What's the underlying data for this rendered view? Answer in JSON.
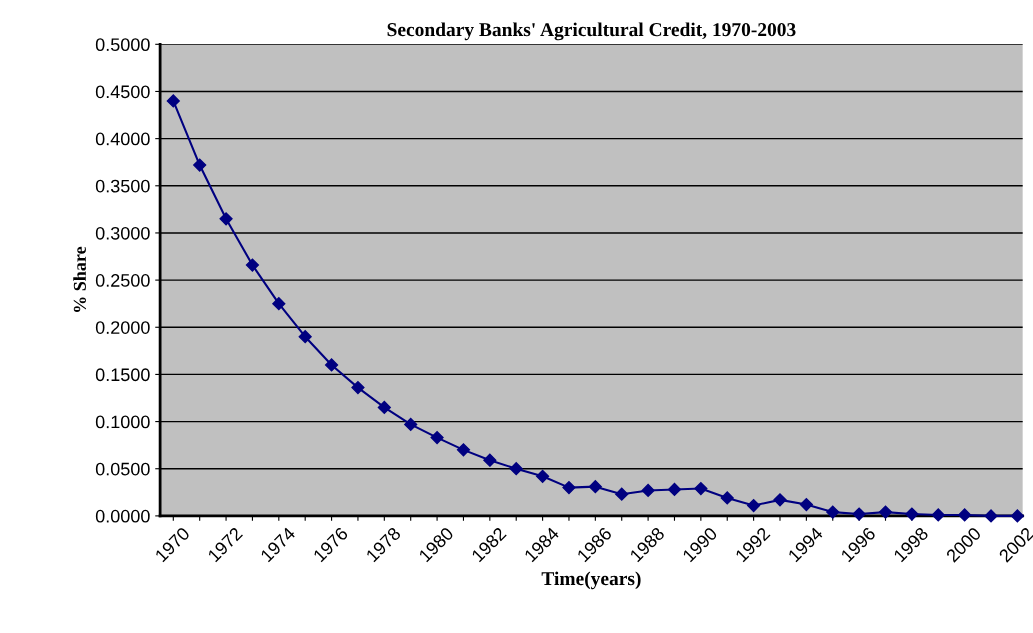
{
  "chart_data": {
    "type": "line",
    "title": "Secondary Banks' Agricultural Credit, 1970-2003",
    "xlabel": "Time(years)",
    "ylabel": "% Share",
    "categories": [
      "1970",
      null,
      "1972",
      null,
      "1974",
      null,
      "1976",
      null,
      "1978",
      null,
      "1980",
      null,
      "1982",
      null,
      "1984",
      null,
      "1986",
      null,
      "1988",
      null,
      "1990",
      null,
      "1992",
      null,
      "1994",
      null,
      "1996",
      null,
      "1998",
      null,
      "2000",
      null,
      "2002"
    ],
    "series": [
      {
        "color": "#000080",
        "values": [
          0.44,
          0.372,
          0.315,
          0.266,
          0.225,
          0.19,
          0.16,
          0.136,
          0.115,
          0.097,
          0.083,
          0.07,
          0.059,
          0.05,
          0.042,
          0.03,
          0.031,
          0.023,
          0.027,
          0.028,
          0.029,
          0.019,
          0.011,
          0.017,
          0.012,
          0.004,
          0.002,
          0.004,
          0.002,
          0.001,
          0.001,
          0.0,
          0.0
        ]
      }
    ],
    "ylim": [
      0,
      0.5
    ],
    "yticks": [
      {
        "value": 0,
        "label": "0.0000"
      },
      {
        "value": 0.05,
        "label": "0.0500"
      },
      {
        "value": 0.1,
        "label": "0.1000"
      },
      {
        "value": 0.15,
        "label": "0.1500"
      },
      {
        "value": 0.2,
        "label": "0.2000"
      },
      {
        "value": 0.25,
        "label": "0.2500"
      },
      {
        "value": 0.3,
        "label": "0.3000"
      },
      {
        "value": 0.35,
        "label": "0.3500"
      },
      {
        "value": 0.4,
        "label": "0.4000"
      },
      {
        "value": 0.45,
        "label": "0.4500"
      },
      {
        "value": 0.5,
        "label": "0.5000"
      }
    ],
    "grid": "y",
    "legend": false,
    "marker": "diamond",
    "line_style": "solid"
  }
}
